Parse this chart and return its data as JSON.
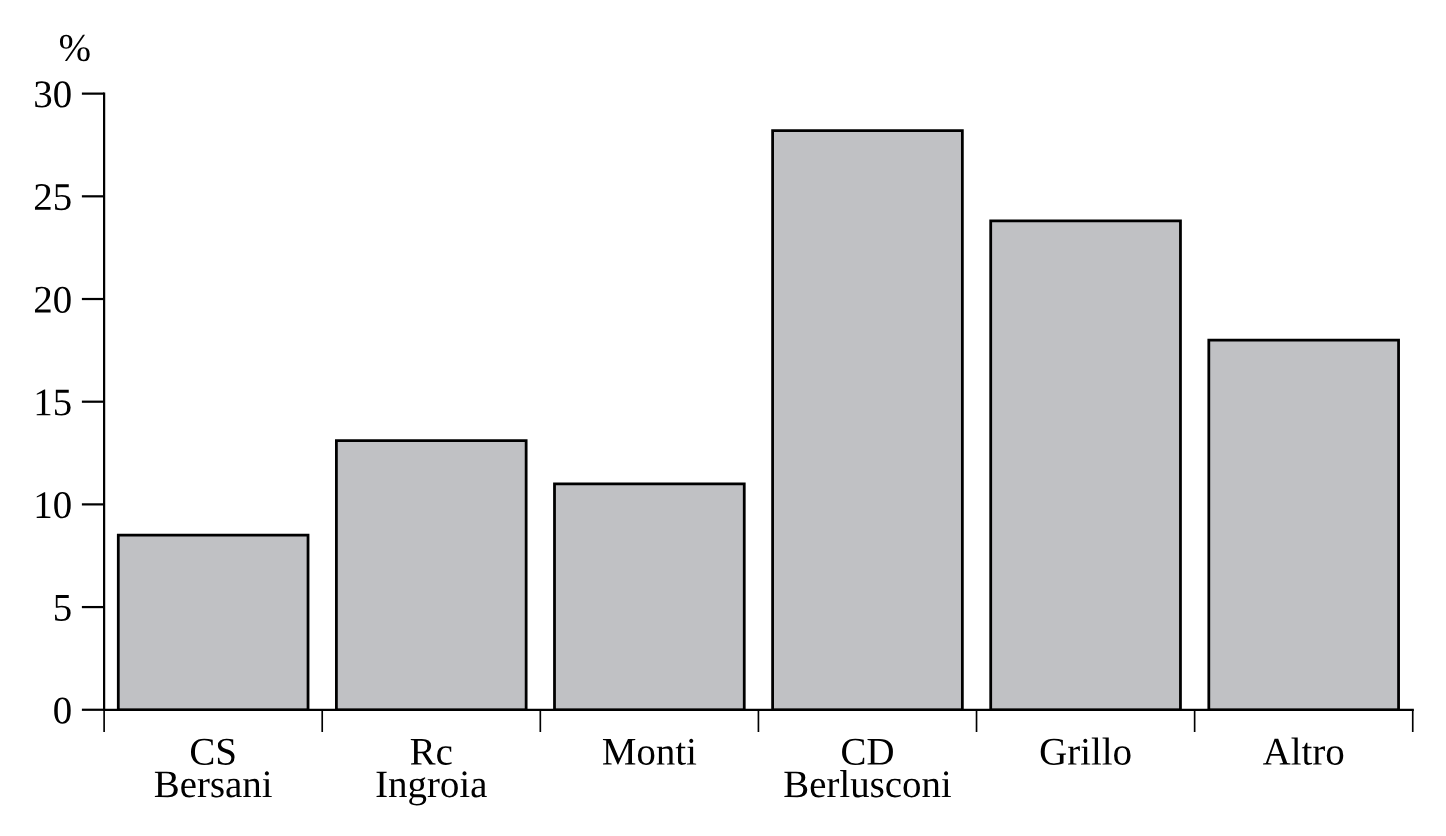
{
  "chart_data": {
    "type": "bar",
    "ylabel": "%",
    "categories": [
      "CS\nBersani",
      "Rc\nIngroia",
      "Monti",
      "CD\nBerlusconi",
      "Grillo",
      "Altro"
    ],
    "values": [
      8.5,
      13.1,
      11.0,
      28.2,
      23.8,
      18.0
    ],
    "color": "#c0c1c4",
    "ylim": [
      0,
      30
    ],
    "yticks": [
      0,
      5,
      10,
      15,
      20,
      25,
      30
    ],
    "grid": false
  }
}
